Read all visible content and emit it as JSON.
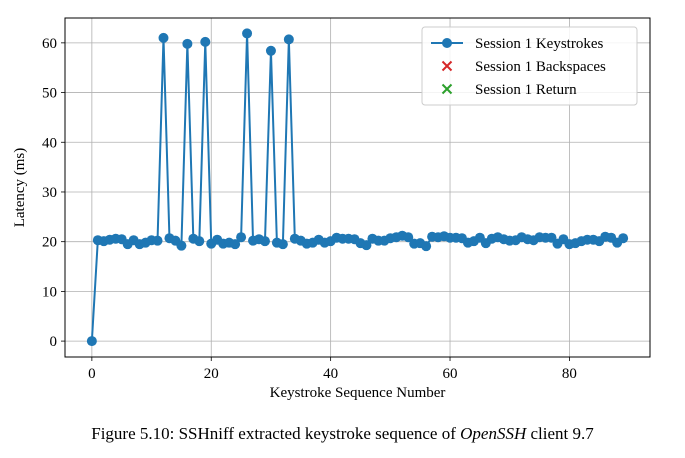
{
  "chart_data": {
    "type": "line",
    "xlabel": "Keystroke Sequence Number",
    "ylabel": "Latency (ms)",
    "xlim": [
      -4.5,
      93.5
    ],
    "ylim": [
      -3.2,
      65
    ],
    "xticks": [
      0,
      20,
      40,
      60,
      80
    ],
    "yticks": [
      0,
      10,
      20,
      30,
      40,
      50,
      60
    ],
    "grid": true,
    "legend_position": "top-right",
    "series": [
      {
        "name": "Session 1 Keystrokes",
        "color": "#1f77b4",
        "marker": "circle",
        "x": [
          0,
          1,
          2,
          3,
          4,
          5,
          6,
          7,
          8,
          9,
          10,
          11,
          12,
          13,
          14,
          15,
          16,
          17,
          18,
          19,
          20,
          21,
          22,
          23,
          24,
          25,
          26,
          27,
          28,
          29,
          30,
          31,
          32,
          33,
          34,
          35,
          36,
          37,
          38,
          39,
          40,
          41,
          42,
          43,
          44,
          45,
          46,
          47,
          48,
          49,
          50,
          51,
          52,
          53,
          54,
          55,
          56,
          57,
          58,
          59,
          60,
          61,
          62,
          63,
          64,
          65,
          66,
          67,
          68,
          69,
          70,
          71,
          72,
          73,
          74,
          75,
          76,
          77,
          78,
          79,
          80,
          81,
          82,
          83,
          84,
          85,
          86,
          87,
          88,
          89
        ],
        "y": [
          0,
          20.3,
          20.1,
          20.4,
          20.6,
          20.5,
          19.5,
          20.3,
          19.5,
          19.8,
          20.3,
          20.2,
          61,
          20.7,
          20.2,
          19.2,
          59.8,
          20.6,
          20.1,
          60.2,
          19.6,
          20.4,
          19.6,
          19.8,
          19.5,
          20.9,
          61.9,
          20.2,
          20.5,
          20.1,
          58.4,
          19.8,
          19.5,
          60.7,
          20.6,
          20.2,
          19.6,
          19.8,
          20.4,
          19.8,
          20.1,
          20.8,
          20.6,
          20.6,
          20.5,
          19.7,
          19.3,
          20.6,
          20.2,
          20.2,
          20.7,
          20.9,
          21.2,
          20.9,
          19.6,
          19.7,
          19.1,
          21,
          20.9,
          21.1,
          20.8,
          20.8,
          20.7,
          19.8,
          20.1,
          20.8,
          19.7,
          20.6,
          20.9,
          20.5,
          20.2,
          20.3,
          20.9,
          20.5,
          20.3,
          20.9,
          20.8,
          20.8,
          19.6,
          20.5,
          19.5,
          19.7,
          20.1,
          20.4,
          20.4,
          20.1,
          21,
          20.8,
          19.8,
          20.7
        ]
      },
      {
        "name": "Session 1 Backspaces",
        "color": "#d62728",
        "marker": "x",
        "x": [],
        "y": []
      },
      {
        "name": "Session 1 Return",
        "color": "#2ca02c",
        "marker": "x",
        "x": [],
        "y": []
      }
    ]
  },
  "caption": {
    "prefix": "Figure 5.10: SSHniff extracted keystroke sequence of ",
    "italic": "OpenSSH",
    "suffix": " client 9.7"
  }
}
